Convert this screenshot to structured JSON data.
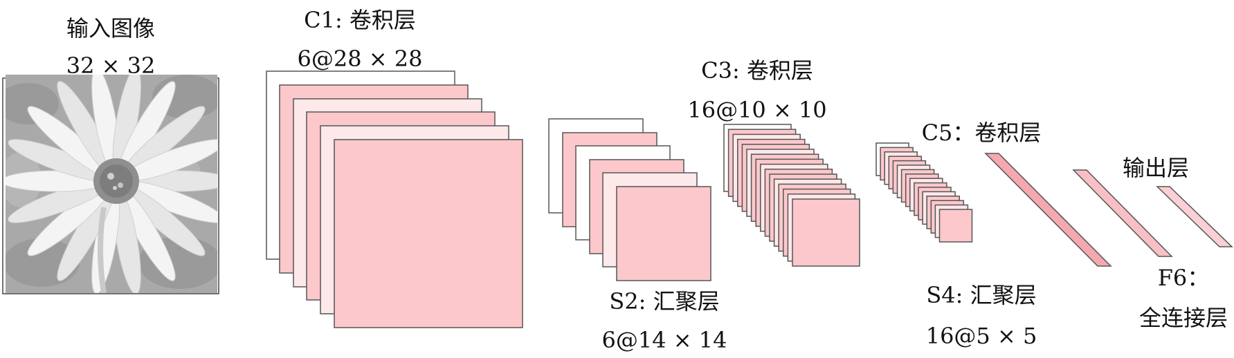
{
  "input": {
    "title": "输入图像",
    "size": "32 × 32"
  },
  "c1": {
    "title": "C1: 卷积层",
    "size": "6@28 × 28"
  },
  "s2": {
    "title": "S2: 汇聚层",
    "size": "6@14 × 14"
  },
  "c3": {
    "title": "C3: 卷积层",
    "size": "16@10 × 10"
  },
  "s4": {
    "title": "S4: 汇聚层",
    "size": "16@5 × 5"
  },
  "c5": {
    "title": "C5：卷积层"
  },
  "f6": {
    "title": "F6：",
    "subtitle": "全连接层"
  },
  "output": {
    "title": "输出层"
  },
  "colors": {
    "feature_fill": "#fcc8cb",
    "feature_light": "#fde8ea",
    "stroke": "#555555",
    "image_bg": "#a8a8a8"
  },
  "icons": {
    "input_image": "daisy-flower-grayscale"
  }
}
